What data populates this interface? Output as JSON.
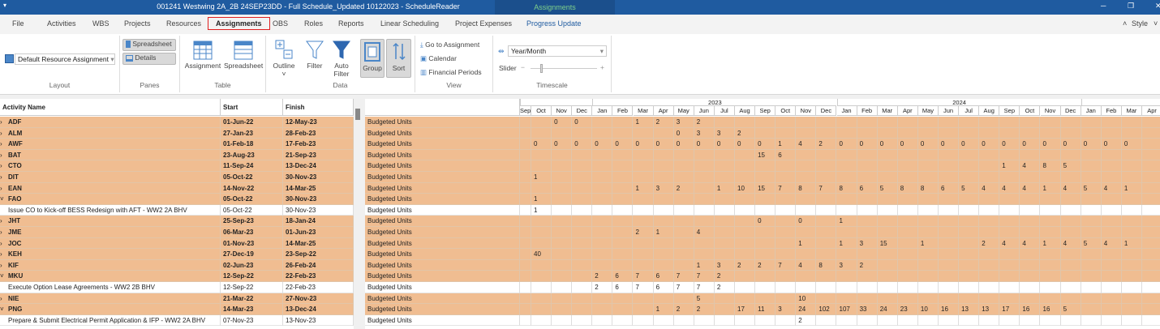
{
  "window": {
    "title": "001241 Westwing 2A_2B 24SEP23DD - Full Schedule_Updated 10122023 - ScheduleReader",
    "context_tab": "Assignments",
    "quick_access_icon": "quick-access-icon",
    "controls": [
      "minimize-icon",
      "restore-icon",
      "close-icon"
    ]
  },
  "tabs": [
    "File",
    "Activities",
    "WBS",
    "Projects",
    "Resources",
    "Assignments",
    "OBS",
    "Roles",
    "Reports",
    "Linear Scheduling",
    "Project Expenses",
    "Progress Update"
  ],
  "active_tab": "Assignments",
  "style_label": "Style",
  "ribbon": {
    "layout": {
      "value": "Default Resource Assignment",
      "label": "Layout"
    },
    "panes": {
      "spreadsheet": "Spreadsheet",
      "details": "Details",
      "label": "Panes"
    },
    "table": {
      "assignment": "Assignment",
      "spreadsheet": "Spreadsheet",
      "label": "Table"
    },
    "data": {
      "outline": "Outline",
      "filter": "Filter",
      "auto_filter_1": "Auto",
      "auto_filter_2": "Filter",
      "group": "Group",
      "sort": "Sort",
      "label": "Data"
    },
    "view": {
      "go_to": "Go to Assignment",
      "calendar": "Calendar",
      "financial": "Financial Periods",
      "label": "View"
    },
    "timescale": {
      "value": "Year/Month",
      "slider_label": "Slider",
      "minus": "−",
      "plus": "+",
      "label": "Timescale"
    }
  },
  "colors": {
    "group_row": "#f0bd91",
    "title_bar": "#1f5ba0",
    "highlight": "#e02020"
  },
  "table": {
    "headers": {
      "name": "Activity Name",
      "start": "Start",
      "finish": "Finish"
    },
    "rows": [
      {
        "type": "group",
        "expanded": false,
        "name": "ADF",
        "start": "01-Jun-22",
        "finish": "12-May-23",
        "measure": "Budgeted Units",
        "values": {
          "Nov-22": 0,
          "Dec-22": 0,
          "Mar-23": 1,
          "Apr-23": 2,
          "May-23": 3,
          "Jun-23": 2
        }
      },
      {
        "type": "group",
        "expanded": false,
        "name": "ALM",
        "start": "27-Jan-23",
        "finish": "28-Feb-23",
        "measure": "Budgeted Units",
        "values": {
          "May-23": 0,
          "Jun-23": 3,
          "Jul-23": 3,
          "Aug-23": 2
        }
      },
      {
        "type": "group",
        "expanded": false,
        "name": "AWF",
        "start": "01-Feb-18",
        "finish": "17-Feb-23",
        "measure": "Budgeted Units",
        "values": {
          "Oct-22": 0,
          "Nov-22": 0,
          "Dec-22": 0,
          "Jan-23": 0,
          "Feb-23": 0,
          "Mar-23": 0,
          "Apr-23": 0,
          "May-23": 0,
          "Jun-23": 0,
          "Jul-23": 0,
          "Aug-23": 0,
          "Sep-23": 0,
          "Oct-23": 1,
          "Nov-23": 4,
          "Dec-23": 2,
          "Jan-24": 0,
          "Feb-24": 0,
          "Mar-24": 0,
          "Apr-24": 0,
          "May-24": 0,
          "Jun-24": 0,
          "Jul-24": 0,
          "Aug-24": 0,
          "Sep-24": 0,
          "Oct-24": 0,
          "Nov-24": 0,
          "Dec-24": 0,
          "Jan-25": 0,
          "Feb-25": 0,
          "Mar-25": 0
        }
      },
      {
        "type": "group",
        "expanded": false,
        "name": "BAT",
        "start": "23-Aug-23",
        "finish": "21-Sep-23",
        "measure": "Budgeted Units",
        "values": {
          "Sep-23": 15,
          "Oct-23": 6
        }
      },
      {
        "type": "group",
        "expanded": false,
        "name": "CTO",
        "start": "11-Sep-24",
        "finish": "13-Dec-24",
        "measure": "Budgeted Units",
        "values": {
          "Sep-24": 1,
          "Oct-24": 4,
          "Nov-24": 8,
          "Dec-24": 5
        }
      },
      {
        "type": "group",
        "expanded": false,
        "name": "DIT",
        "start": "05-Oct-22",
        "finish": "30-Nov-23",
        "measure": "Budgeted Units",
        "values": {
          "Oct-22": 1
        }
      },
      {
        "type": "group",
        "expanded": false,
        "name": "EAN",
        "start": "14-Nov-22",
        "finish": "14-Mar-25",
        "measure": "Budgeted Units",
        "values": {
          "Mar-23": 1,
          "Apr-23": 3,
          "May-23": 2,
          "Jul-23": 1,
          "Aug-23": 10,
          "Sep-23": 15,
          "Oct-23": 7,
          "Nov-23": 8,
          "Dec-23": 7,
          "Jan-24": 8,
          "Feb-24": 6,
          "Mar-24": 5,
          "Apr-24": 8,
          "May-24": 8,
          "Jun-24": 6,
          "Jul-24": 5,
          "Aug-24": 4,
          "Sep-24": 4,
          "Oct-24": 4,
          "Nov-24": 1,
          "Dec-24": 4,
          "Jan-25": 5,
          "Feb-25": 4,
          "Mar-25": 1
        }
      },
      {
        "type": "group",
        "expanded": true,
        "name": "FAO",
        "start": "05-Oct-22",
        "finish": "30-Nov-23",
        "measure": "Budgeted Units",
        "values": {
          "Oct-22": 1
        }
      },
      {
        "type": "task",
        "name": "Issue CO to Kick-off BESS Redesign with AFT - WW2 2A BHV",
        "start": "05-Oct-22",
        "finish": "30-Nov-23",
        "measure": "Budgeted Units",
        "values": {
          "Oct-22": 1
        }
      },
      {
        "type": "group",
        "expanded": false,
        "name": "JHT",
        "start": "25-Sep-23",
        "finish": "18-Jan-24",
        "measure": "Budgeted Units",
        "values": {
          "Sep-23": 0,
          "Nov-23": 0,
          "Jan-24": 1
        }
      },
      {
        "type": "group",
        "expanded": false,
        "name": "JME",
        "start": "06-Mar-23",
        "finish": "01-Jun-23",
        "measure": "Budgeted Units",
        "values": {
          "Mar-23": 2,
          "Apr-23": 1,
          "Jun-23": 4
        }
      },
      {
        "type": "group",
        "expanded": false,
        "name": "JOC",
        "start": "01-Nov-23",
        "finish": "14-Mar-25",
        "measure": "Budgeted Units",
        "values": {
          "Nov-23": 1,
          "Jan-24": 1,
          "Feb-24": 3,
          "Mar-24": 15,
          "May-24": 1,
          "Aug-24": 2,
          "Sep-24": 4,
          "Oct-24": 4,
          "Nov-24": 1,
          "Dec-24": 4,
          "Jan-25": 5,
          "Feb-25": 4,
          "Mar-25": 1
        }
      },
      {
        "type": "group",
        "expanded": false,
        "name": "KEH",
        "start": "27-Dec-19",
        "finish": "23-Sep-22",
        "measure": "Budgeted Units",
        "values": {
          "Oct-22": 40
        }
      },
      {
        "type": "group",
        "expanded": false,
        "name": "KIF",
        "start": "02-Jun-23",
        "finish": "26-Feb-24",
        "measure": "Budgeted Units",
        "values": {
          "Jun-23": 1,
          "Jul-23": 3,
          "Aug-23": 2,
          "Sep-23": 2,
          "Oct-23": 7,
          "Nov-23": 4,
          "Dec-23": 8,
          "Jan-24": 3,
          "Feb-24": 2
        }
      },
      {
        "type": "group",
        "expanded": true,
        "name": "MKU",
        "start": "12-Sep-22",
        "finish": "22-Feb-23",
        "measure": "Budgeted Units",
        "values": {
          "Jan-23": 2,
          "Feb-23": 6,
          "Mar-23": 7,
          "Apr-23": 6,
          "May-23": 7,
          "Jun-23": 7,
          "Jul-23": 2
        }
      },
      {
        "type": "task",
        "name": "Execute Option Lease Agreements - WW2 2B BHV",
        "start": "12-Sep-22",
        "finish": "22-Feb-23",
        "measure": "Budgeted Units",
        "values": {
          "Jan-23": 2,
          "Feb-23": 6,
          "Mar-23": 7,
          "Apr-23": 6,
          "May-23": 7,
          "Jun-23": 7,
          "Jul-23": 2
        }
      },
      {
        "type": "group",
        "expanded": false,
        "name": "NIE",
        "start": "21-Mar-22",
        "finish": "27-Nov-23",
        "measure": "Budgeted Units",
        "values": {
          "Jun-23": 5,
          "Nov-23": 10
        }
      },
      {
        "type": "group",
        "expanded": true,
        "name": "PNG",
        "start": "14-Mar-23",
        "finish": "13-Dec-24",
        "measure": "Budgeted Units",
        "values": {
          "Apr-23": 1,
          "May-23": 2,
          "Jun-23": 2,
          "Aug-23": 17,
          "Sep-23": 11,
          "Oct-23": 3,
          "Nov-23": 24,
          "Dec-23": 102,
          "Jan-24": 107,
          "Feb-24": 33,
          "Mar-24": 24,
          "Apr-24": 23,
          "May-24": 10,
          "Jun-24": 16,
          "Jul-24": 13,
          "Aug-24": 13,
          "Sep-24": 17,
          "Oct-24": 16,
          "Nov-24": 16,
          "Dec-24": 5
        }
      },
      {
        "type": "task",
        "name": "Prepare & Submit Electrical Permit Application & IFP  - WW2 2A BHV",
        "start": "07-Nov-23",
        "finish": "13-Nov-23",
        "measure": "Budgeted Units",
        "values": {
          "Nov-23": 2
        }
      }
    ]
  },
  "timescale": {
    "years": [
      {
        "label": "",
        "months": [
          "Sep-22",
          "Oct-22",
          "Nov-22",
          "Dec-22"
        ]
      },
      {
        "label": "2023"
      },
      {
        "label": "2024"
      },
      {
        "label": ""
      }
    ],
    "months": [
      {
        "key": "Sep-22",
        "label": "Sep"
      },
      {
        "key": "Oct-22",
        "label": "Oct"
      },
      {
        "key": "Nov-22",
        "label": "Nov"
      },
      {
        "key": "Dec-22",
        "label": "Dec"
      },
      {
        "key": "Jan-23",
        "label": "Jan"
      },
      {
        "key": "Feb-23",
        "label": "Feb"
      },
      {
        "key": "Mar-23",
        "label": "Mar"
      },
      {
        "key": "Apr-23",
        "label": "Apr"
      },
      {
        "key": "May-23",
        "label": "May"
      },
      {
        "key": "Jun-23",
        "label": "Jun"
      },
      {
        "key": "Jul-23",
        "label": "Jul"
      },
      {
        "key": "Aug-23",
        "label": "Aug"
      },
      {
        "key": "Sep-23",
        "label": "Sep"
      },
      {
        "key": "Oct-23",
        "label": "Oct"
      },
      {
        "key": "Nov-23",
        "label": "Nov"
      },
      {
        "key": "Dec-23",
        "label": "Dec"
      },
      {
        "key": "Jan-24",
        "label": "Jan"
      },
      {
        "key": "Feb-24",
        "label": "Feb"
      },
      {
        "key": "Mar-24",
        "label": "Mar"
      },
      {
        "key": "Apr-24",
        "label": "Apr"
      },
      {
        "key": "May-24",
        "label": "May"
      },
      {
        "key": "Jun-24",
        "label": "Jun"
      },
      {
        "key": "Jul-24",
        "label": "Jul"
      },
      {
        "key": "Aug-24",
        "label": "Aug"
      },
      {
        "key": "Sep-24",
        "label": "Sep"
      },
      {
        "key": "Oct-24",
        "label": "Oct"
      },
      {
        "key": "Nov-24",
        "label": "Nov"
      },
      {
        "key": "Dec-24",
        "label": "Dec"
      },
      {
        "key": "Jan-25",
        "label": "Jan"
      },
      {
        "key": "Feb-25",
        "label": "Feb"
      },
      {
        "key": "Mar-25",
        "label": "Mar"
      },
      {
        "key": "Apr-25",
        "label": "Apr"
      }
    ]
  }
}
